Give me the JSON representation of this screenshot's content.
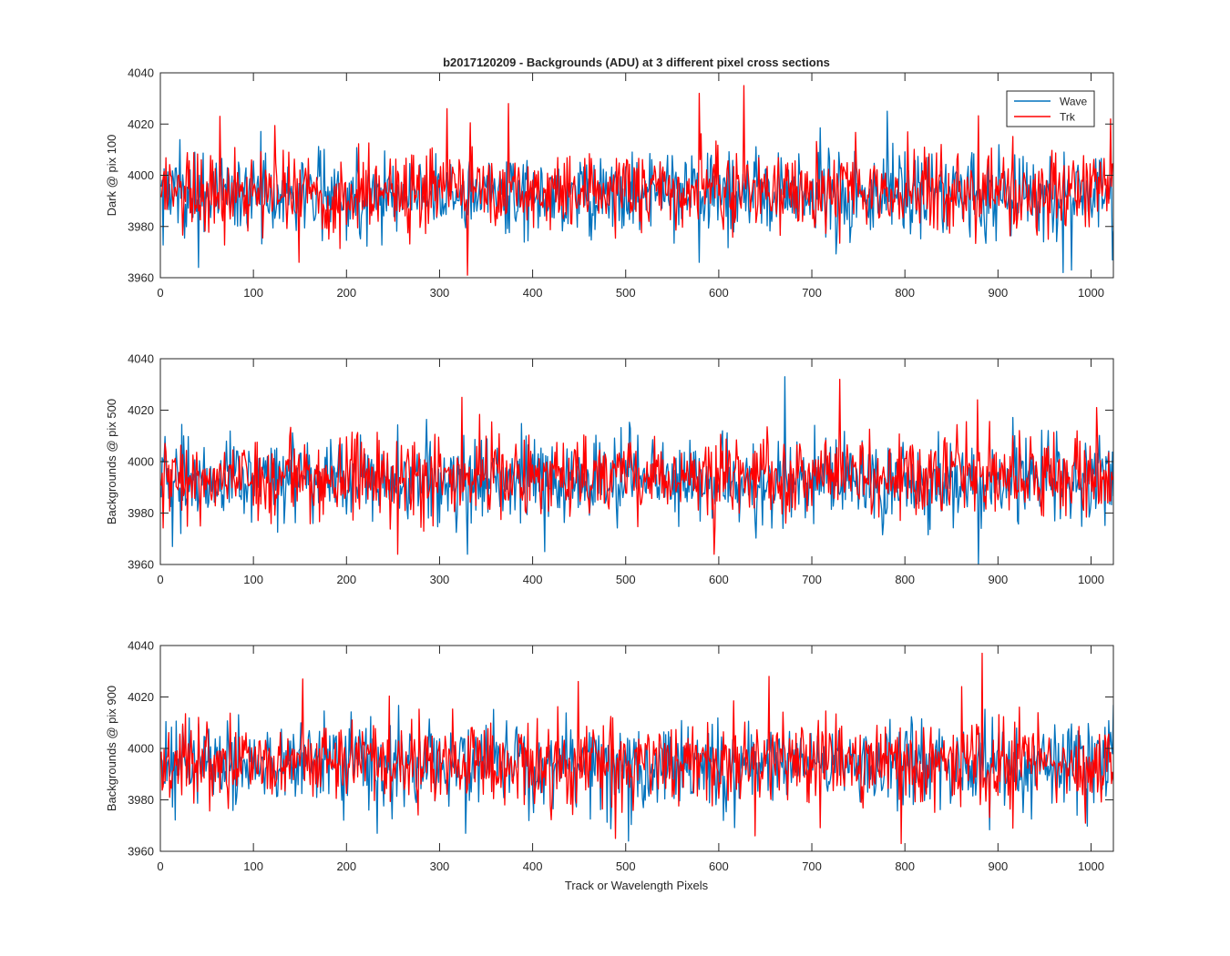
{
  "figure": {
    "title": "b2017120209 - Backgrounds (ADU) at 3 different pixel cross sections",
    "xlabel": "Track or Wavelength Pixels",
    "series_colors": {
      "Wave": "#0072BD",
      "Trk": "#FF0000"
    },
    "legend": {
      "placement": "top-right of first panel",
      "entries": [
        "Wave",
        "Trk"
      ]
    }
  },
  "chart_data": [
    {
      "type": "line",
      "ylabel": "Dark @ pix 100",
      "xlim": [
        0,
        1024
      ],
      "ylim": [
        3960,
        4040
      ],
      "xticks": [
        0,
        100,
        200,
        300,
        400,
        500,
        600,
        700,
        800,
        900,
        1000
      ],
      "yticks": [
        3960,
        3980,
        4000,
        4020,
        4040
      ],
      "grid": false,
      "series": [
        {
          "name": "Wave",
          "samples": 1024,
          "mean": 3993,
          "std": 8,
          "min": 3962,
          "max": 4025,
          "spikes": [
            [
              40,
              3964
            ],
            [
              578,
              3966
            ],
            [
              780,
              4025
            ],
            [
              969,
              3962
            ],
            [
              978,
              3963
            ]
          ]
        },
        {
          "name": "Trk",
          "samples": 1024,
          "mean": 3994,
          "std": 8,
          "min": 3961,
          "max": 4035,
          "spikes": [
            [
              63,
              4023
            ],
            [
              148,
              3966
            ],
            [
              307,
              4026
            ],
            [
              329,
              3961
            ],
            [
              373,
              4028
            ],
            [
              578,
              4032
            ],
            [
              626,
              4035
            ],
            [
              1020,
              4022
            ]
          ]
        }
      ]
    },
    {
      "type": "line",
      "ylabel": "Backgrounds @ pix 500",
      "xlim": [
        0,
        1024
      ],
      "ylim": [
        3960,
        4040
      ],
      "xticks": [
        0,
        100,
        200,
        300,
        400,
        500,
        600,
        700,
        800,
        900,
        1000
      ],
      "yticks": [
        3960,
        3980,
        4000,
        4020,
        4040
      ],
      "grid": false,
      "series": [
        {
          "name": "Wave",
          "samples": 1024,
          "mean": 3993,
          "std": 8,
          "min": 3960,
          "max": 4033,
          "spikes": [
            [
              12,
              3967
            ],
            [
              329,
              3964
            ],
            [
              412,
              3965
            ],
            [
              670,
              4033
            ],
            [
              878,
              3960
            ]
          ]
        },
        {
          "name": "Trk",
          "samples": 1024,
          "mean": 3994,
          "std": 8,
          "min": 3964,
          "max": 4032,
          "spikes": [
            [
              254,
              3964
            ],
            [
              323,
              4025
            ],
            [
              594,
              3964
            ],
            [
              729,
              4032
            ],
            [
              877,
              4024
            ],
            [
              1005,
              4021
            ]
          ]
        }
      ]
    },
    {
      "type": "line",
      "ylabel": "Backgrounds @ pix 900",
      "xlim": [
        0,
        1024
      ],
      "ylim": [
        3960,
        4040
      ],
      "xticks": [
        0,
        100,
        200,
        300,
        400,
        500,
        600,
        700,
        800,
        900,
        1000
      ],
      "yticks": [
        3960,
        3980,
        4000,
        4020,
        4040
      ],
      "grid": false,
      "series": [
        {
          "name": "Wave",
          "samples": 1024,
          "mean": 3994,
          "std": 8,
          "min": 3964,
          "max": 4021,
          "spikes": [
            [
              232,
              3967
            ],
            [
              327,
              3967
            ],
            [
              502,
              3964
            ]
          ]
        },
        {
          "name": "Trk",
          "samples": 1024,
          "mean": 3995,
          "std": 8,
          "min": 3963,
          "max": 4037,
          "spikes": [
            [
              152,
              4027
            ],
            [
              448,
              4026
            ],
            [
              488,
              3965
            ],
            [
              638,
              3966
            ],
            [
              653,
              4028
            ],
            [
              795,
              3963
            ],
            [
              860,
              4024
            ],
            [
              882,
              4037
            ]
          ]
        }
      ]
    }
  ]
}
